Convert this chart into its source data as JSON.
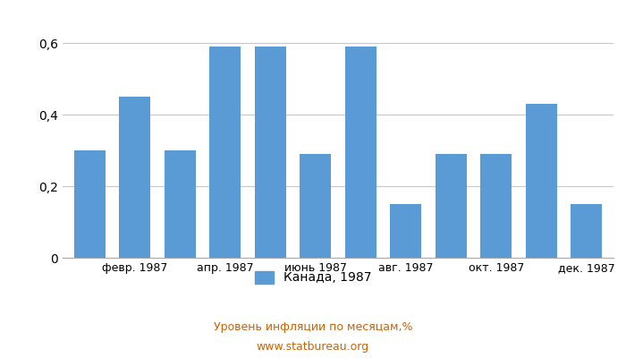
{
  "months_count": 12,
  "values": [
    0.3,
    0.45,
    0.3,
    0.59,
    0.59,
    0.29,
    0.59,
    0.15,
    0.29,
    0.29,
    0.43,
    0.15
  ],
  "bar_color": "#5b9bd5",
  "ylim": [
    0,
    0.65
  ],
  "yticks": [
    0,
    0.2,
    0.4,
    0.6
  ],
  "ytick_labels": [
    "0",
    "0,2",
    "0,4",
    "0,6"
  ],
  "xtick_positions": [
    1,
    3,
    5,
    7,
    9,
    11
  ],
  "xtick_labels": [
    "февр. 1987",
    "апр. 1987",
    "июнь 1987",
    "авг. 1987",
    "окт. 1987",
    "дек. 1987"
  ],
  "legend_label": "Канада, 1987",
  "bottom_text1": "Уровень инфляции по месяцам,%",
  "bottom_text2": "www.statbureau.org",
  "background_color": "#ffffff",
  "grid_color": "#c8c8c8"
}
